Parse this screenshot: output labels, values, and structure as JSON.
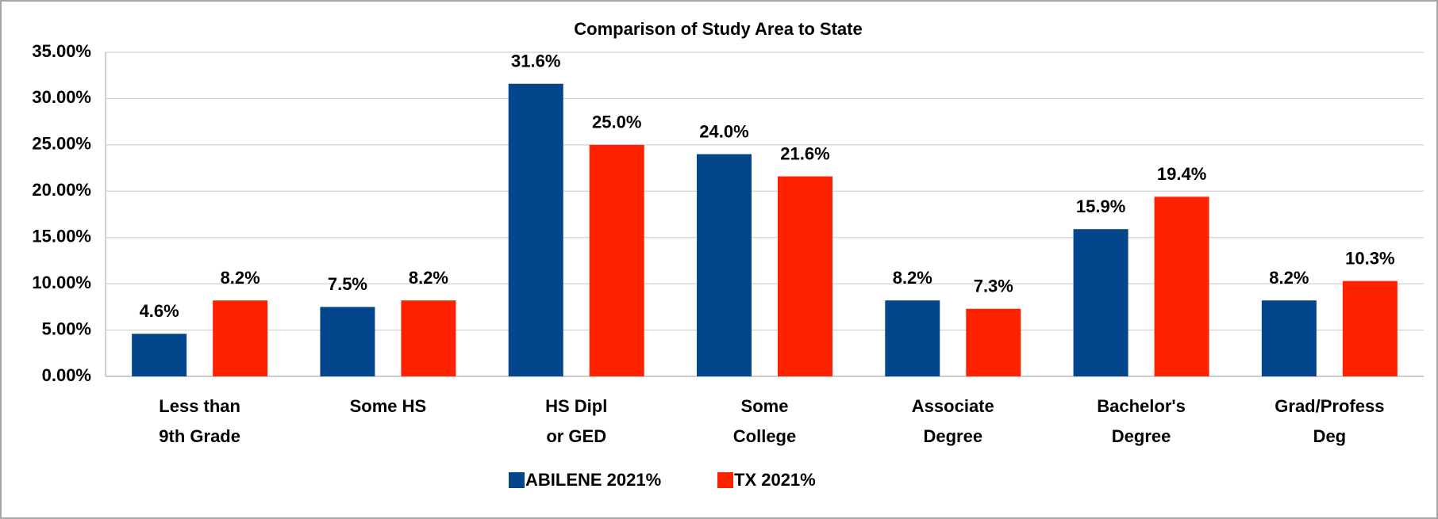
{
  "chart_data": {
    "type": "bar",
    "title": "Comparison of Study Area to State",
    "categories": [
      [
        "Less than",
        "9th Grade"
      ],
      [
        "Some HS"
      ],
      [
        "HS Dipl",
        "or GED"
      ],
      [
        "Some",
        "College"
      ],
      [
        "Associate",
        "Degree"
      ],
      [
        "Bachelor's",
        "Degree"
      ],
      [
        "Grad/Profess",
        "Deg"
      ]
    ],
    "series": [
      {
        "name": "ABILENE 2021%",
        "color": "#03468c",
        "values": [
          4.6,
          7.5,
          31.6,
          24.0,
          8.2,
          15.9,
          8.2
        ],
        "value_labels": [
          "4.6%",
          "7.5%",
          "31.6%",
          "24.0%",
          "8.2%",
          "15.9%",
          "8.2%"
        ]
      },
      {
        "name": "TX 2021%",
        "color": "#ff2200",
        "values": [
          8.2,
          8.2,
          25.0,
          21.6,
          7.3,
          19.4,
          10.3
        ],
        "value_labels": [
          "8.2%",
          "8.2%",
          "25.0%",
          "21.6%",
          "7.3%",
          "19.4%",
          "10.3%"
        ]
      }
    ],
    "ylim": [
      0,
      35
    ],
    "yticks": [
      {
        "value": 0,
        "label": "0.00%"
      },
      {
        "value": 5,
        "label": "5.00%"
      },
      {
        "value": 10,
        "label": "10.00%"
      },
      {
        "value": 15,
        "label": "15.00%"
      },
      {
        "value": 20,
        "label": "20.00%"
      },
      {
        "value": 25,
        "label": "25.00%"
      },
      {
        "value": 30,
        "label": "30.00%"
      },
      {
        "value": 35,
        "label": "35.00%"
      }
    ],
    "grid": true,
    "legend": "bottom"
  }
}
